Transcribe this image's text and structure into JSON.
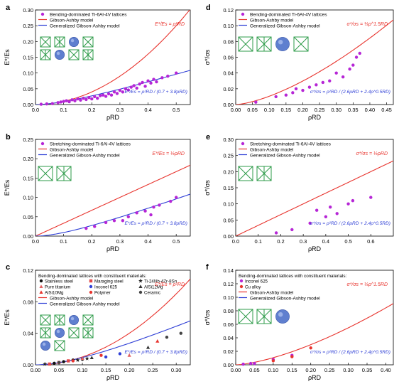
{
  "colors": {
    "gibson": "#e8342e",
    "generalized": "#2f3fd6",
    "purple": "#b626d6",
    "lattice_green": "#2e9b49",
    "lattice_blue": "#5f7fcf",
    "steel": "#111111",
    "maraging": "#e34848",
    "ti": "#222222",
    "pure_ti": "#e36060",
    "inconel": "#2f3fd6",
    "alsi": "#333333",
    "polymer": "#e8342e",
    "ceramic": "#444444",
    "cu": "#e8342e"
  },
  "panels": [
    {
      "letter": "a",
      "ylabel": "E*/Es",
      "xlabel": "ρRD",
      "legend": [
        {
          "text": "Bending-dominated Ti-6Al-4V lattices",
          "kind": "dot",
          "color": "#b626d6"
        },
        {
          "text": "Gibson-Ashby model",
          "kind": "line",
          "color": "#e8342e"
        },
        {
          "text": "Generalized Gibson-Ashby model",
          "kind": "line",
          "color": "#2f3fd6"
        }
      ],
      "eq_red": "E*/Es = ρ²RD",
      "eq_blue": "E*/Es = ρ²RD / (0.7 + 3.8ρRD)",
      "icon_count": 8
    },
    {
      "letter": "b",
      "ylabel": "E*/Es",
      "xlabel": "ρRD",
      "legend": [
        {
          "text": "Stretching-dominated Ti-6Al-4V lattices",
          "kind": "dot",
          "color": "#b626d6"
        },
        {
          "text": "Gibson-Ashby model",
          "kind": "line",
          "color": "#e8342e"
        },
        {
          "text": "Generalized Gibson-Ashby model",
          "kind": "line",
          "color": "#2f3fd6"
        }
      ],
      "eq_red": "E*/Es = ⅓ρRD",
      "eq_blue": "E*/Es = ρ²RD / (0.7 + 3.8ρRD)",
      "icon_count": 2
    },
    {
      "letter": "c",
      "ylabel": "E*/Es",
      "xlabel": "ρRD",
      "legend_title": "Bending-dominated lattices with constituent materials:",
      "legend_materials": [
        {
          "text": "Stainless steel",
          "color": "#111111",
          "shape": "dot"
        },
        {
          "text": "Maraging steel",
          "color": "#e34848",
          "shape": "square"
        },
        {
          "text": "Ti-24Nb-4Zr-8Sn",
          "color": "#222222",
          "shape": "star"
        },
        {
          "text": "Pure titanium",
          "color": "#e36060",
          "shape": "tri"
        },
        {
          "text": "Inconel 625",
          "color": "#2f3fd6",
          "shape": "dot"
        },
        {
          "text": "AlSi12Mg",
          "color": "#333333",
          "shape": "tri"
        },
        {
          "text": "AlSi10Mg",
          "color": "#e8342e",
          "shape": "tri"
        },
        {
          "text": "Polymer",
          "color": "#e8342e",
          "shape": "dot"
        },
        {
          "text": "Ceramic",
          "color": "#444444",
          "shape": "dot"
        }
      ],
      "legend": [
        {
          "text": "Gibson-Ashby model",
          "kind": "line",
          "color": "#e8342e"
        },
        {
          "text": "Generalized Gibson-Ashby model",
          "kind": "line",
          "color": "#2f3fd6"
        }
      ],
      "eq_red": "E*/Es = ρ²RD",
      "eq_blue": "E*/Es = ρ²RD / (0.7 + 3.8ρRD)",
      "icon_count": 10
    },
    {
      "letter": "d",
      "ylabel": "σ*/σs",
      "xlabel": "ρRD",
      "legend": [
        {
          "text": "Bending-dominated Ti-6Al-4V lattices",
          "kind": "dot",
          "color": "#b626d6"
        },
        {
          "text": "Gibson-Ashby model",
          "kind": "line",
          "color": "#e8342e"
        },
        {
          "text": "Generalized Gibson-Ashby model",
          "kind": "line",
          "color": "#2f3fd6"
        }
      ],
      "eq_red": "σ*/σs = ⅓ρ^1.5RD",
      "eq_blue": "σ*/σs = ρ²RD / (2.6ρRD + 2.4ρ^0.5RD)",
      "icon_count": 4
    },
    {
      "letter": "e",
      "ylabel": "σ*/σs",
      "xlabel": "ρRD",
      "legend": [
        {
          "text": "Stretching-dominated Ti-6Al-4V lattices",
          "kind": "dot",
          "color": "#b626d6"
        },
        {
          "text": "Gibson-Ashby model",
          "kind": "line",
          "color": "#e8342e"
        },
        {
          "text": "Generalized Gibson-Ashby model",
          "kind": "line",
          "color": "#2f3fd6"
        }
      ],
      "eq_red": "σ*/σs = ⅓ρRD",
      "eq_blue": "σ*/σs = ρ²RD / (2.6ρRD + 2.4ρ^0.5RD)",
      "icon_count": 2
    },
    {
      "letter": "f",
      "ylabel": "σ*/σs",
      "xlabel": "ρRD",
      "legend_title": "Bending-dominated lattices with constituent materials:",
      "legend_materials": [
        {
          "text": "Inconel 625",
          "color": "#b626d6",
          "shape": "dot"
        },
        {
          "text": "Cu alloy",
          "color": "#e8342e",
          "shape": "dot"
        }
      ],
      "legend": [
        {
          "text": "Gibson-Ashby model",
          "kind": "line",
          "color": "#e8342e"
        },
        {
          "text": "Generalized Gibson-Ashby model",
          "kind": "line",
          "color": "#2f3fd6"
        }
      ],
      "eq_red": "σ*/σs = ⅓ρ^1.5RD",
      "eq_blue": "σ*/σs = ρ²RD / (2.6ρRD + 2.4ρ^0.5RD)",
      "icon_count": 3
    }
  ],
  "chart_data": [
    {
      "panel": "a",
      "type": "scatter",
      "xlim": [
        0,
        0.55
      ],
      "ylim": [
        0,
        0.3
      ],
      "xticks": [
        0.0,
        0.1,
        0.2,
        0.3,
        0.4,
        0.5
      ],
      "yticks": [
        0.0,
        0.05,
        0.1,
        0.15,
        0.2,
        0.25,
        0.3
      ],
      "xtick_labels": [
        "0.0",
        "0.1",
        "0.2",
        "0.3",
        "0.4",
        "0.5"
      ],
      "ytick_labels": [
        "0.00",
        "0.05",
        "0.10",
        "0.15",
        "0.20",
        "0.25",
        "0.30"
      ],
      "model": "E",
      "series": [
        {
          "name": "Bending-dominated Ti-6Al-4V lattices",
          "color": "#b626d6",
          "shape": "dot",
          "points": [
            [
              0.02,
              0.001
            ],
            [
              0.04,
              0.002
            ],
            [
              0.06,
              0.003
            ],
            [
              0.08,
              0.006
            ],
            [
              0.09,
              0.008
            ],
            [
              0.1,
              0.01
            ],
            [
              0.11,
              0.012
            ],
            [
              0.12,
              0.009
            ],
            [
              0.13,
              0.015
            ],
            [
              0.14,
              0.012
            ],
            [
              0.15,
              0.018
            ],
            [
              0.16,
              0.014
            ],
            [
              0.17,
              0.02
            ],
            [
              0.18,
              0.016
            ],
            [
              0.19,
              0.022
            ],
            [
              0.2,
              0.018
            ],
            [
              0.21,
              0.025
            ],
            [
              0.22,
              0.02
            ],
            [
              0.23,
              0.028
            ],
            [
              0.24,
              0.03
            ],
            [
              0.25,
              0.026
            ],
            [
              0.26,
              0.034
            ],
            [
              0.27,
              0.03
            ],
            [
              0.28,
              0.04
            ],
            [
              0.29,
              0.035
            ],
            [
              0.3,
              0.045
            ],
            [
              0.31,
              0.04
            ],
            [
              0.32,
              0.05
            ],
            [
              0.33,
              0.046
            ],
            [
              0.34,
              0.055
            ],
            [
              0.35,
              0.06
            ],
            [
              0.36,
              0.052
            ],
            [
              0.37,
              0.065
            ],
            [
              0.38,
              0.07
            ],
            [
              0.39,
              0.058
            ],
            [
              0.4,
              0.075
            ],
            [
              0.41,
              0.068
            ],
            [
              0.42,
              0.08
            ],
            [
              0.43,
              0.072
            ],
            [
              0.45,
              0.085
            ],
            [
              0.47,
              0.09
            ],
            [
              0.5,
              0.1
            ]
          ]
        }
      ]
    },
    {
      "panel": "b",
      "type": "scatter",
      "xlim": [
        0,
        0.55
      ],
      "ylim": [
        0,
        0.25
      ],
      "xticks": [
        0.0,
        0.1,
        0.2,
        0.3,
        0.4,
        0.5
      ],
      "yticks": [
        0.0,
        0.05,
        0.1,
        0.15,
        0.2,
        0.25
      ],
      "xtick_labels": [
        "0.0",
        "0.1",
        "0.2",
        "0.3",
        "0.4",
        "0.5"
      ],
      "ytick_labels": [
        "0.00",
        "0.05",
        "0.10",
        "0.15",
        "0.20",
        "0.25"
      ],
      "model": "E_stretch",
      "series": [
        {
          "name": "Stretching-dominated Ti-6Al-4V lattices",
          "color": "#b626d6",
          "shape": "dot",
          "points": [
            [
              0.18,
              0.02
            ],
            [
              0.21,
              0.025
            ],
            [
              0.25,
              0.035
            ],
            [
              0.28,
              0.04
            ],
            [
              0.31,
              0.04
            ],
            [
              0.33,
              0.05
            ],
            [
              0.36,
              0.06
            ],
            [
              0.39,
              0.065
            ],
            [
              0.41,
              0.055
            ],
            [
              0.42,
              0.075
            ],
            [
              0.44,
              0.08
            ],
            [
              0.48,
              0.09
            ],
            [
              0.5,
              0.1
            ]
          ]
        }
      ]
    },
    {
      "panel": "c",
      "type": "scatter",
      "xlim": [
        0,
        0.33
      ],
      "ylim": [
        0,
        0.12
      ],
      "xticks": [
        0.0,
        0.05,
        0.1,
        0.15,
        0.2,
        0.25,
        0.3
      ],
      "yticks": [
        0.0,
        0.04,
        0.08,
        0.12
      ],
      "xtick_labels": [
        "0.00",
        "0.05",
        "0.10",
        "0.15",
        "0.20",
        "0.25",
        "0.30"
      ],
      "ytick_labels": [
        "0.00",
        "0.04",
        "0.08",
        "0.12"
      ],
      "model": "E",
      "series": [
        {
          "name": "Stainless steel",
          "color": "#111111",
          "shape": "dot",
          "points": [
            [
              0.04,
              0.002
            ],
            [
              0.06,
              0.004
            ],
            [
              0.08,
              0.006
            ],
            [
              0.1,
              0.007
            ]
          ]
        },
        {
          "name": "Maraging steel",
          "color": "#e34848",
          "shape": "square",
          "points": [
            [
              0.03,
              0.001
            ],
            [
              0.05,
              0.003
            ],
            [
              0.07,
              0.005
            ]
          ]
        },
        {
          "name": "Ti-24Nb-4Zr-8Sn",
          "color": "#222222",
          "shape": "star",
          "points": [
            [
              0.02,
              0.001
            ],
            [
              0.09,
              0.006
            ],
            [
              0.11,
              0.008
            ]
          ]
        },
        {
          "name": "Pure titanium",
          "color": "#e36060",
          "shape": "tri",
          "points": [
            [
              0.1,
              0.008
            ],
            [
              0.2,
              0.012
            ]
          ]
        },
        {
          "name": "Inconel 625",
          "color": "#2f3fd6",
          "shape": "dot",
          "points": [
            [
              0.15,
              0.01
            ],
            [
              0.18,
              0.014
            ]
          ]
        },
        {
          "name": "AlSi12Mg",
          "color": "#333333",
          "shape": "tri",
          "points": [
            [
              0.12,
              0.009
            ],
            [
              0.24,
              0.022
            ]
          ]
        },
        {
          "name": "AlSi10Mg",
          "color": "#e8342e",
          "shape": "tri",
          "points": [
            [
              0.26,
              0.03
            ]
          ]
        },
        {
          "name": "Polymer",
          "color": "#e8342e",
          "shape": "dot",
          "points": [
            [
              0.08,
              0.005
            ],
            [
              0.14,
              0.012
            ]
          ]
        },
        {
          "name": "Ceramic",
          "color": "#444444",
          "shape": "dot",
          "points": [
            [
              0.05,
              0.003
            ],
            [
              0.28,
              0.035
            ],
            [
              0.31,
              0.04
            ]
          ]
        }
      ]
    },
    {
      "panel": "d",
      "type": "scatter",
      "xlim": [
        0,
        0.47
      ],
      "ylim": [
        0,
        0.12
      ],
      "xticks": [
        0.0,
        0.05,
        0.1,
        0.15,
        0.2,
        0.25,
        0.3,
        0.35,
        0.4,
        0.45
      ],
      "yticks": [
        0.0,
        0.02,
        0.04,
        0.06,
        0.08,
        0.1,
        0.12
      ],
      "xtick_labels": [
        "0.00",
        "0.05",
        "0.10",
        "0.15",
        "0.20",
        "0.25",
        "0.30",
        "0.35",
        "0.40",
        "0.45"
      ],
      "ytick_labels": [
        "0.00",
        "0.02",
        "0.04",
        "0.06",
        "0.08",
        "0.10",
        "0.12"
      ],
      "model": "S",
      "series": [
        {
          "name": "Bending-dominated Ti-6Al-4V lattices",
          "color": "#b626d6",
          "shape": "dot",
          "points": [
            [
              0.06,
              0.003
            ],
            [
              0.12,
              0.01
            ],
            [
              0.15,
              0.012
            ],
            [
              0.17,
              0.015
            ],
            [
              0.18,
              0.02
            ],
            [
              0.2,
              0.018
            ],
            [
              0.22,
              0.022
            ],
            [
              0.24,
              0.025
            ],
            [
              0.26,
              0.028
            ],
            [
              0.28,
              0.03
            ],
            [
              0.3,
              0.04
            ],
            [
              0.32,
              0.035
            ],
            [
              0.34,
              0.045
            ],
            [
              0.35,
              0.05
            ],
            [
              0.36,
              0.06
            ],
            [
              0.37,
              0.065
            ]
          ]
        }
      ]
    },
    {
      "panel": "e",
      "type": "scatter",
      "xlim": [
        0,
        0.7
      ],
      "ylim": [
        0,
        0.3
      ],
      "xticks": [
        0.0,
        0.1,
        0.2,
        0.3,
        0.4,
        0.5,
        0.6
      ],
      "yticks": [
        0.0,
        0.05,
        0.1,
        0.15,
        0.2,
        0.25,
        0.3
      ],
      "xtick_labels": [
        "0.0",
        "0.1",
        "0.2",
        "0.3",
        "0.4",
        "0.5",
        "0.6"
      ],
      "ytick_labels": [
        "0.00",
        "0.05",
        "0.10",
        "0.15",
        "0.20",
        "0.25",
        "0.30"
      ],
      "model": "S_stretch",
      "series": [
        {
          "name": "Stretching-dominated Ti-6Al-4V lattices",
          "color": "#b626d6",
          "shape": "dot",
          "points": [
            [
              0.18,
              0.01
            ],
            [
              0.25,
              0.02
            ],
            [
              0.33,
              0.04
            ],
            [
              0.36,
              0.08
            ],
            [
              0.4,
              0.06
            ],
            [
              0.42,
              0.09
            ],
            [
              0.45,
              0.07
            ],
            [
              0.5,
              0.1
            ],
            [
              0.52,
              0.11
            ],
            [
              0.6,
              0.12
            ]
          ]
        }
      ]
    },
    {
      "panel": "f",
      "type": "scatter",
      "xlim": [
        0,
        0.42
      ],
      "ylim": [
        0,
        0.14
      ],
      "xticks": [
        0.0,
        0.05,
        0.1,
        0.15,
        0.2,
        0.25,
        0.3,
        0.35,
        0.4
      ],
      "yticks": [
        0.0,
        0.02,
        0.04,
        0.06,
        0.08,
        0.1,
        0.12,
        0.14
      ],
      "xtick_labels": [
        "0.00",
        "0.05",
        "0.10",
        "0.15",
        "0.20",
        "0.25",
        "0.30",
        "0.35",
        "0.40"
      ],
      "ytick_labels": [
        "0.00",
        "0.02",
        "0.04",
        "0.06",
        "0.08",
        "0.10",
        "0.12",
        "0.14"
      ],
      "model": "S",
      "series": [
        {
          "name": "Inconel 625",
          "color": "#b626d6",
          "shape": "dot",
          "points": [
            [
              0.02,
              0.001
            ],
            [
              0.04,
              0.002
            ],
            [
              0.05,
              0.002
            ],
            [
              0.1,
              0.008
            ],
            [
              0.15,
              0.014
            ]
          ]
        },
        {
          "name": "Cu alloy",
          "color": "#e8342e",
          "shape": "dot",
          "points": [
            [
              0.1,
              0.006
            ],
            [
              0.15,
              0.012
            ],
            [
              0.2,
              0.025
            ]
          ]
        }
      ]
    }
  ]
}
